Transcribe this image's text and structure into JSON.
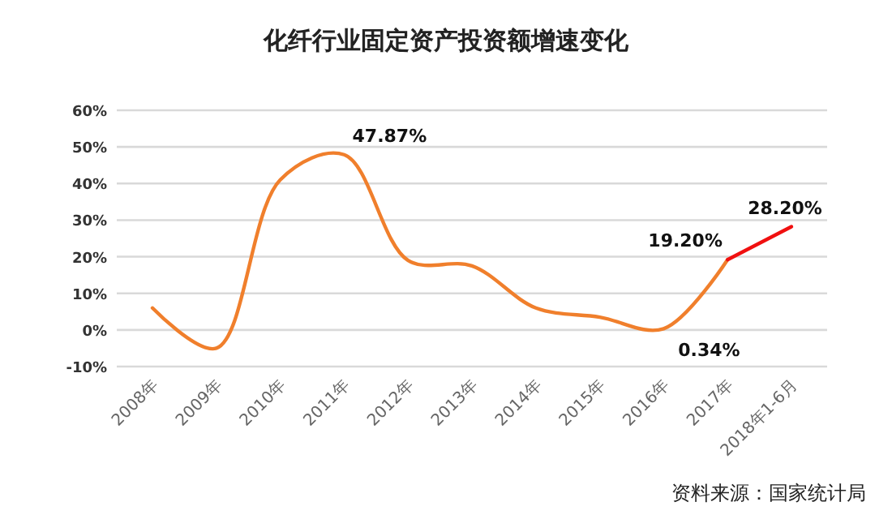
{
  "chart_data": {
    "type": "line",
    "title": "化纤行业固定资产投资额增速变化",
    "categories": [
      "2008年",
      "2009年",
      "2010年",
      "2011年",
      "2012年",
      "2013年",
      "2014年",
      "2015年",
      "2016年",
      "2017年",
      "2018年1-6月"
    ],
    "series": [
      {
        "color": "#f07f2c",
        "values": [
          6,
          -5,
          41,
          47.87,
          19,
          17.5,
          6,
          3.5,
          0.34,
          19.2,
          null
        ],
        "value_labels": [
          null,
          null,
          null,
          "47.87%",
          null,
          null,
          null,
          null,
          "0.34%",
          "19.20%",
          null
        ]
      },
      {
        "color": "#f01010",
        "values": [
          null,
          null,
          null,
          null,
          null,
          null,
          null,
          null,
          null,
          19.2,
          28.2
        ],
        "value_labels": [
          null,
          null,
          null,
          null,
          null,
          null,
          null,
          null,
          null,
          null,
          "28.20%"
        ]
      }
    ],
    "ylim": [
      -10,
      60
    ],
    "yticks": [
      {
        "value": -10,
        "label": "-10%"
      },
      {
        "value": 0,
        "label": "0%"
      },
      {
        "value": 10,
        "label": "10%"
      },
      {
        "value": 20,
        "label": "20%"
      },
      {
        "value": 30,
        "label": "30%"
      },
      {
        "value": 40,
        "label": "40%"
      },
      {
        "value": 50,
        "label": "50%"
      },
      {
        "value": 60,
        "label": "60%"
      }
    ],
    "grid": "y",
    "marker": "none",
    "line_style": "solid",
    "annotations": [
      "资料来源：国家统计局"
    ]
  }
}
